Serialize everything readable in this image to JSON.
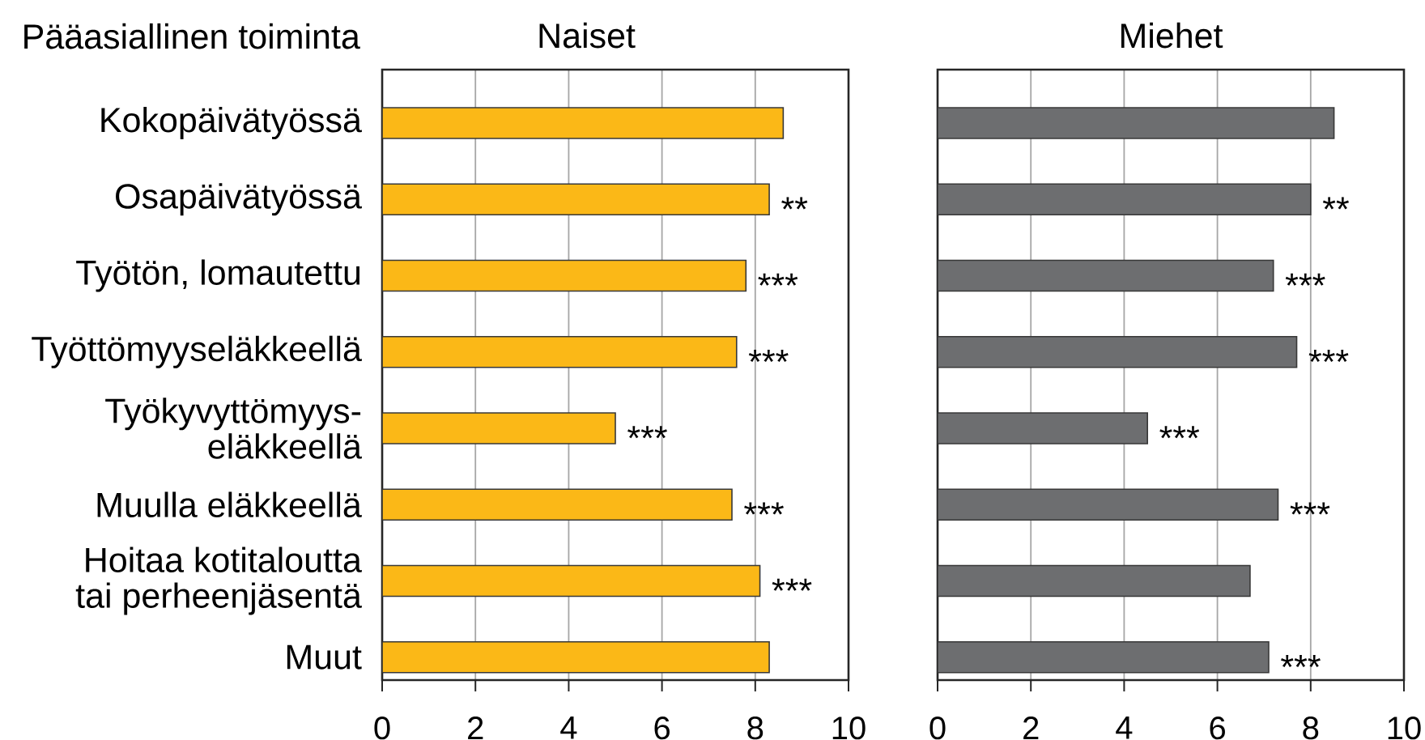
{
  "chart_data": [
    {
      "type": "bar",
      "orientation": "horizontal",
      "title": "Naiset",
      "ylabel": "Pääasiallinen toiminta",
      "categories": [
        "Kokopäivätyössä",
        "Osapäivätyössä",
        "Työtön, lomautettu",
        "Työttömyyseläkkeellä",
        "Työkyvyttömyys-eläkkeellä",
        "Muulla eläkkeellä",
        "Hoitaa kotitaloutta tai perheenjäsentä",
        "Muut"
      ],
      "values": [
        8.6,
        8.3,
        7.8,
        7.6,
        5.0,
        7.5,
        8.1,
        8.3
      ],
      "color": "#fbb817",
      "xlim": [
        0,
        10
      ],
      "xticks": [
        0,
        2,
        4,
        6,
        8,
        10
      ],
      "grid": "x",
      "annotations": [
        {
          "text": "**",
          "x": 8.3,
          "y": "Osapäivätyössä"
        },
        {
          "text": "***",
          "x": 7.8,
          "y": "Työtön, lomautettu"
        },
        {
          "text": "***",
          "x": 7.6,
          "y": "Työttömyyseläkkeellä"
        },
        {
          "text": "***",
          "x": 5.0,
          "y": "Työkyvyttömyys-eläkkeellä"
        },
        {
          "text": "***",
          "x": 7.5,
          "y": "Muulla eläkkeellä"
        },
        {
          "text": "***",
          "x": 8.1,
          "y": "Hoitaa kotitaloutta tai perheenjäsentä"
        }
      ]
    },
    {
      "type": "bar",
      "orientation": "horizontal",
      "title": "Miehet",
      "categories": [
        "Kokopäivätyössä",
        "Osapäivätyössä",
        "Työtön, lomautettu",
        "Työttömyyseläkkeellä",
        "Työkyvyttömyys-eläkkeellä",
        "Muulla eläkkeellä",
        "Hoitaa kotitaloutta tai perheenjäsentä",
        "Muut"
      ],
      "values": [
        8.5,
        8.0,
        7.2,
        7.7,
        4.5,
        7.3,
        6.7,
        7.1
      ],
      "color": "#6d6e70",
      "xlim": [
        0,
        10
      ],
      "xticks": [
        0,
        2,
        4,
        6,
        8,
        10
      ],
      "grid": "x",
      "tick_labels": "x",
      "annotations": [
        {
          "text": "**",
          "x": 8.0,
          "y": "Osapäivätyössä"
        },
        {
          "text": "***",
          "x": 7.2,
          "y": "Työtön, lomautettu"
        },
        {
          "text": "***",
          "x": 7.7,
          "y": "Työttömyyseläkkeellä"
        },
        {
          "text": "***",
          "x": 4.5,
          "y": "Työkyvyttömyys-eläkkeellä"
        },
        {
          "text": "***",
          "x": 7.3,
          "y": "Muulla eläkkeellä"
        },
        {
          "text": "***",
          "x": 7.1,
          "y": "Muut"
        }
      ]
    }
  ]
}
